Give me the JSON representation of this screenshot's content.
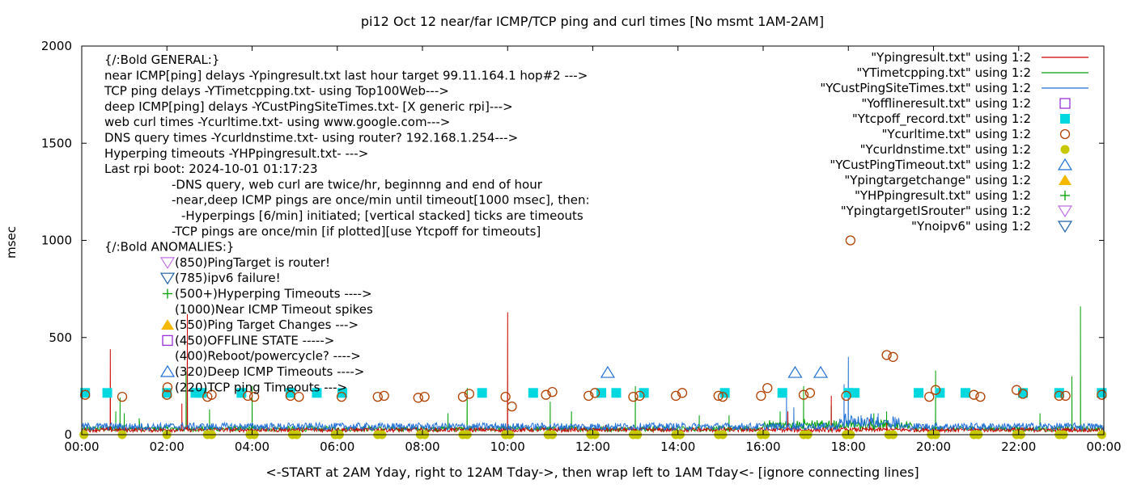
{
  "chart_data": {
    "type": "line",
    "title": "pi12 Oct 12  near/far ICMP/TCP ping and curl times [No msmt 1AM-2AM]",
    "xlabel": "<-START at 2AM Yday, right to 12AM Tday->, then wrap left to 1AM Tday<- [ignore connecting lines]",
    "ylabel": "msec",
    "xlim": [
      0,
      24
    ],
    "ylim": [
      0,
      2000
    ],
    "x_ticks": [
      "00:00",
      "02:00",
      "04:00",
      "06:00",
      "08:00",
      "10:00",
      "12:00",
      "14:00",
      "16:00",
      "18:00",
      "20:00",
      "22:00",
      "00:00"
    ],
    "y_ticks": [
      "0",
      "500",
      "1000",
      "1500",
      "2000"
    ],
    "grid": false,
    "legend_position": "top-right",
    "legend": [
      {
        "label": "\"Ypingresult.txt\" using 1:2",
        "symbol": "line",
        "color": "#cc0000"
      },
      {
        "label": "\"YTimetcpping.txt\" using 1:2",
        "symbol": "line",
        "color": "#00a000"
      },
      {
        "label": "\"YCustPingSiteTimes.txt\" using 1:2",
        "symbol": "line",
        "color": "#1f6fd6"
      },
      {
        "label": "\"Yofflineresult.txt\" using 1:2",
        "symbol": "open-square",
        "color": "#9b30d9"
      },
      {
        "label": "\"Ytcpoff_record.txt\" using 1:2",
        "symbol": "filled-square",
        "color": "#00d8e0"
      },
      {
        "label": "\"Ycurltime.txt\" using 1:2",
        "symbol": "open-circle",
        "color": "#b04000"
      },
      {
        "label": "\"Ycurldnstime.txt\" using 1:2",
        "symbol": "filled-circle",
        "color": "#c8c800"
      },
      {
        "label": "\"YCustPingTimeout.txt\" using 1:2",
        "symbol": "open-triangle-up",
        "color": "#1f6fd6"
      },
      {
        "label": "\"Ypingtargetchange\" using 1:2",
        "symbol": "filled-triangle-up",
        "color": "#f5b800"
      },
      {
        "label": "\"YHPpingresult.txt\" using 1:2",
        "symbol": "plus",
        "color": "#00a000"
      },
      {
        "label": "\"YpingtargetISrouter\" using 1:2",
        "symbol": "open-triangle-down",
        "color": "#c070e0"
      },
      {
        "label": "\"Ynoipv6\" using 1:2",
        "symbol": "open-triangle-down",
        "color": "#1f5fa6"
      }
    ],
    "annotations": [
      "{/:Bold GENERAL:}",
      "near ICMP[ping] delays -Ypingresult.txt last hour target 99.11.164.1 hop#2 --->",
      "TCP ping delays -YTimetcpping.txt- using Top100Web--->",
      "deep ICMP[ping] delays -YCustPingSiteTimes.txt- [X generic rpi]--->",
      "web curl times -Ycurltime.txt- using www.google.com--->",
      "DNS query times -Ycurldnstime.txt- using router? 192.168.1.254--->",
      "Hyperping timeouts -YHPpingresult.txt- --->",
      "Last rpi boot: 2024-10-01 01:17:23",
      "-DNS query, web curl are twice/hr, beginnng and end of hour",
      "-near,deep ICMP pings are once/min until timeout[1000 msec], then:",
      "-Hyperpings [6/min] initiated; [vertical stacked] ticks are timeouts",
      "-TCP pings are once/min [if plotted][use Ytcpoff for timeouts]",
      "{/:Bold ANOMALIES:}",
      "(850)PingTarget is router!",
      "(785)ipv6 failure!",
      "(500+)Hyperping Timeouts ---->",
      "(1000)Near ICMP Timeout spikes",
      "(550)Ping Target Changes --->",
      "(450)OFFLINE STATE ----->",
      "(400)Reboot/powercycle? ---->",
      "(320)Deep ICMP Timeouts ---->",
      "(220)TCP ping Timeouts --->"
    ],
    "series": [
      {
        "name": "\"Ypingresult.txt\" using 1:2",
        "color": "#cc0000",
        "baseline": 25,
        "spikes": [
          [
            0.67,
            440
          ],
          [
            2.35,
            160
          ],
          [
            2.48,
            620
          ],
          [
            10.0,
            630
          ],
          [
            12.3,
            50
          ],
          [
            16.58,
            120
          ],
          [
            17.6,
            200
          ],
          [
            18.5,
            80
          ],
          [
            18.9,
            60
          ]
        ]
      },
      {
        "name": "\"YTimetcpping.txt\" using 1:2",
        "color": "#00a000",
        "baseline": 30,
        "spikes": [
          [
            0.8,
            120
          ],
          [
            0.9,
            190
          ],
          [
            1.0,
            110
          ],
          [
            2.45,
            330
          ],
          [
            3.0,
            130
          ],
          [
            4.0,
            250
          ],
          [
            8.6,
            110
          ],
          [
            9.05,
            240
          ],
          [
            11.0,
            170
          ],
          [
            11.5,
            120
          ],
          [
            13.0,
            250
          ],
          [
            14.5,
            100
          ],
          [
            15.2,
            100
          ],
          [
            16.4,
            120
          ],
          [
            16.95,
            250
          ],
          [
            17.6,
            150
          ],
          [
            18.6,
            110
          ],
          [
            18.9,
            120
          ],
          [
            20.05,
            330
          ],
          [
            22.5,
            110
          ],
          [
            23.25,
            300
          ],
          [
            23.45,
            660
          ]
        ],
        "extra_points": [
          [
            1.0,
            30
          ],
          [
            1.35,
            85
          ],
          [
            1.95,
            40
          ]
        ]
      },
      {
        "name": "\"YCustPingSiteTimes.txt\" using 1:2",
        "color": "#1f6fd6",
        "baseline": 42,
        "spikes": [
          [
            16.55,
            210
          ],
          [
            16.72,
            140
          ],
          [
            17.9,
            260
          ],
          [
            18.0,
            400
          ],
          [
            18.3,
            100
          ],
          [
            18.7,
            110
          ],
          [
            19.1,
            90
          ]
        ]
      }
    ],
    "markers": {
      "Ytcpoff_record.txt": {
        "color": "#00d8e0",
        "y": 215,
        "x": [
          0.08,
          0.6,
          2.0,
          2.67,
          2.82,
          3.75,
          4.9,
          5.52,
          6.12,
          9.4,
          10.6,
          12.2,
          12.55,
          13.2,
          15.1,
          16.45,
          18.0,
          18.15,
          19.65,
          20.15,
          20.75,
          22.1,
          22.95,
          23.95
        ]
      },
      "Ycurltime.txt": {
        "color": "#b04000",
        "points": [
          [
            0.08,
            205
          ],
          [
            0.95,
            195
          ],
          [
            2.0,
            205
          ],
          [
            2.95,
            195
          ],
          [
            3.05,
            205
          ],
          [
            3.9,
            200
          ],
          [
            4.05,
            195
          ],
          [
            4.9,
            200
          ],
          [
            5.1,
            195
          ],
          [
            6.1,
            195
          ],
          [
            6.95,
            195
          ],
          [
            7.1,
            200
          ],
          [
            7.9,
            190
          ],
          [
            8.05,
            195
          ],
          [
            8.95,
            195
          ],
          [
            9.1,
            210
          ],
          [
            9.95,
            195
          ],
          [
            10.1,
            145
          ],
          [
            10.9,
            205
          ],
          [
            11.05,
            220
          ],
          [
            11.9,
            200
          ],
          [
            12.05,
            215
          ],
          [
            12.95,
            195
          ],
          [
            13.1,
            200
          ],
          [
            13.95,
            200
          ],
          [
            14.1,
            215
          ],
          [
            14.95,
            200
          ],
          [
            15.05,
            195
          ],
          [
            15.95,
            200
          ],
          [
            16.1,
            240
          ],
          [
            16.95,
            205
          ],
          [
            17.1,
            215
          ],
          [
            17.95,
            200
          ],
          [
            18.05,
            1000
          ],
          [
            18.9,
            410
          ],
          [
            19.05,
            400
          ],
          [
            19.9,
            195
          ],
          [
            20.05,
            230
          ],
          [
            20.95,
            205
          ],
          [
            21.1,
            195
          ],
          [
            21.95,
            230
          ],
          [
            22.1,
            210
          ],
          [
            22.95,
            200
          ],
          [
            23.1,
            200
          ],
          [
            23.95,
            205
          ]
        ]
      },
      "Ycurldnstime.txt": {
        "color": "#c8c800",
        "y": 0,
        "x": [
          0.05,
          0.95,
          2.0,
          2.95,
          3.05,
          3.95,
          4.05,
          4.95,
          5.05,
          5.95,
          6.05,
          6.95,
          7.05,
          7.95,
          8.05,
          8.95,
          9.05,
          9.95,
          10.05,
          10.95,
          11.05,
          11.95,
          12.05,
          12.95,
          13.05,
          13.95,
          14.05,
          14.95,
          15.05,
          15.95,
          16.05,
          16.95,
          17.05,
          17.95,
          18.05,
          18.95,
          19.05,
          19.95,
          20.05,
          20.95,
          21.05,
          21.95,
          22.05,
          22.95,
          23.05,
          23.95
        ]
      },
      "YCustPingTimeout.txt": {
        "color": "#1f6fd6",
        "y": 320,
        "x": [
          12.35,
          16.75,
          17.35
        ]
      }
    }
  }
}
